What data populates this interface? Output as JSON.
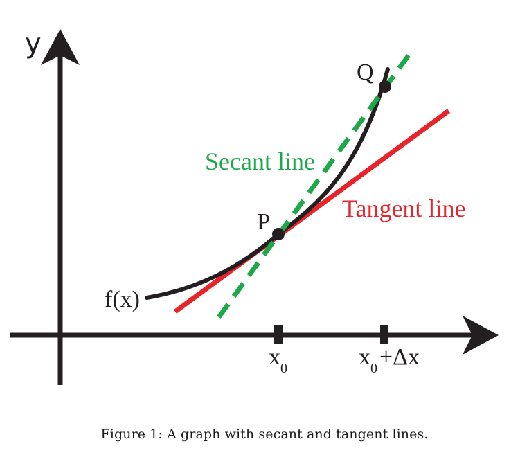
{
  "diagram": {
    "y_axis_label": "y",
    "function_label": "f(x)",
    "point_p_label": "P",
    "point_q_label": "Q",
    "secant_label": "Secant line",
    "tangent_label": "Tangent line",
    "x0_label": "x",
    "x0_subscript": "0",
    "x0_dx_label_x": "x",
    "x0_dx_subscript": "0",
    "x0_dx_suffix": "+Δx",
    "colors": {
      "axis": "#231f20",
      "curve": "#231f20",
      "tangent": "#e8232a",
      "secant": "#1fa84a",
      "text": "#231f20"
    }
  },
  "caption": {
    "text": "Figure 1: A graph with secant and tangent lines."
  }
}
